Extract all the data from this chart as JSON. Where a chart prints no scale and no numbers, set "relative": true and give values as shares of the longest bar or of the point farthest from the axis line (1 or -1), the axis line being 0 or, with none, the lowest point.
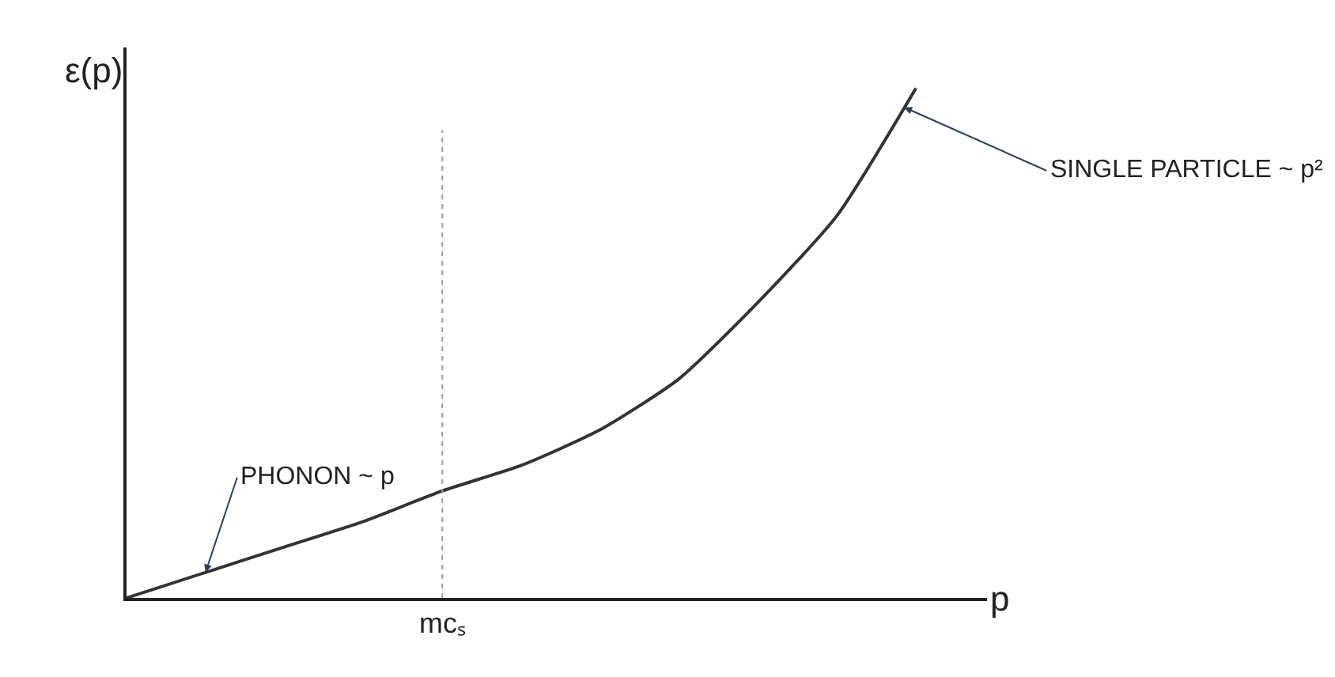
{
  "chart_data": {
    "type": "line",
    "relative": true,
    "ylabel": "ε(p)",
    "xlabel": "p",
    "categories": [
      null,
      null,
      null,
      null,
      null,
      null,
      null,
      null,
      null,
      null,
      null
    ],
    "series": [
      {
        "color": "#333333",
        "values": [
          0,
          0.05,
          0.1,
          0.15,
          0.21,
          0.26,
          0.33,
          0.43,
          0.58,
          0.75,
          1.0
        ]
      }
    ],
    "annotations": [
      "mcₛ",
      "PHONON ~ p",
      "SINGLE PARTICLE ~ p²"
    ],
    "marker": "none",
    "line_style": "solid"
  }
}
